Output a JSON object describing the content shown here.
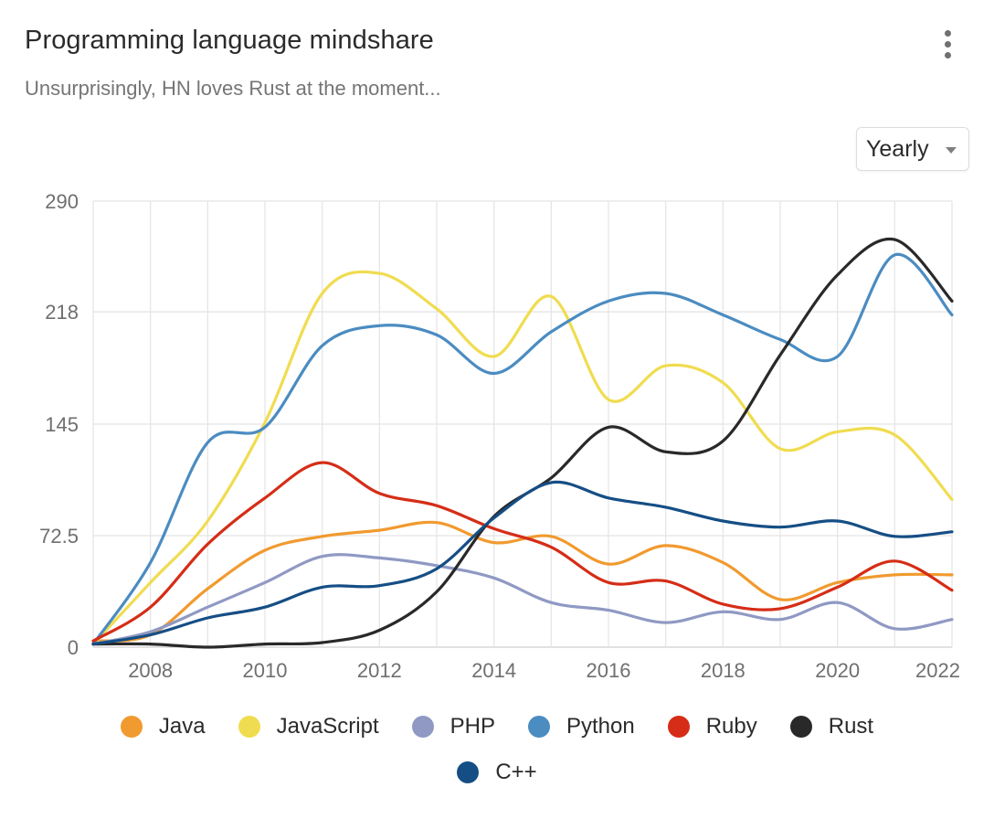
{
  "header": {
    "title": "Programming language mindshare",
    "subtitle": "Unsurprisingly, HN loves Rust at the moment...",
    "menu_icon": "kebab-menu-icon"
  },
  "controls": {
    "period_selected": "Yearly",
    "period_icon": "chevron-down-icon"
  },
  "chart_data": {
    "type": "line",
    "title": "Programming language mindshare",
    "subtitle": "Unsurprisingly, HN loves Rust at the moment...",
    "xlabel": "",
    "ylabel": "",
    "xlim": [
      2007,
      2022
    ],
    "ylim": [
      0,
      290
    ],
    "grid": true,
    "legend": "bottom",
    "x": [
      2007,
      2008,
      2009,
      2010,
      2011,
      2012,
      2013,
      2014,
      2015,
      2016,
      2017,
      2018,
      2019,
      2020,
      2021,
      2022
    ],
    "x_ticks": [
      "2008",
      "2010",
      "2012",
      "2014",
      "2016",
      "2018",
      "2020",
      "2022"
    ],
    "y_ticks": [
      "0",
      "72.5",
      "145",
      "218",
      "290"
    ],
    "series": [
      {
        "name": "Java",
        "color": "#f19a2f",
        "values": [
          4,
          8,
          38,
          63,
          72,
          76,
          81,
          68,
          72,
          54,
          66,
          55,
          31,
          42,
          47,
          47
        ]
      },
      {
        "name": "JavaScript",
        "color": "#f0dc50",
        "values": [
          2,
          42,
          82,
          146,
          230,
          243,
          220,
          189,
          228,
          161,
          183,
          172,
          129,
          140,
          138,
          96
        ]
      },
      {
        "name": "PHP",
        "color": "#8f99c3",
        "values": [
          2,
          10,
          26,
          42,
          59,
          58,
          53,
          45,
          29,
          24,
          16,
          23,
          18,
          29,
          12,
          18
        ]
      },
      {
        "name": "Python",
        "color": "#4b8cc1",
        "values": [
          2,
          55,
          133,
          143,
          196,
          209,
          203,
          178,
          205,
          225,
          230,
          216,
          200,
          189,
          255,
          216
        ]
      },
      {
        "name": "Ruby",
        "color": "#d52d17",
        "values": [
          4,
          26,
          67,
          97,
          120,
          100,
          92,
          77,
          65,
          42,
          43,
          28,
          25,
          39,
          56,
          37
        ]
      },
      {
        "name": "Rust",
        "color": "#292929",
        "values": [
          2,
          2,
          0,
          2,
          3,
          11,
          36,
          85,
          110,
          143,
          127,
          134,
          190,
          242,
          265,
          225
        ]
      },
      {
        "name": "C++",
        "color": "#154e85",
        "values": [
          2,
          8,
          19,
          26,
          39,
          40,
          51,
          84,
          107,
          97,
          91,
          82,
          78,
          82,
          72,
          75
        ]
      }
    ]
  },
  "legend_rows": [
    [
      {
        "name": "Java",
        "color": "#f19a2f"
      },
      {
        "name": "JavaScript",
        "color": "#f0dc50"
      },
      {
        "name": "PHP",
        "color": "#8f99c3"
      },
      {
        "name": "Python",
        "color": "#4b8cc1"
      },
      {
        "name": "Ruby",
        "color": "#d52d17"
      },
      {
        "name": "Rust",
        "color": "#292929"
      }
    ],
    [
      {
        "name": "C++",
        "color": "#154e85"
      }
    ]
  ]
}
